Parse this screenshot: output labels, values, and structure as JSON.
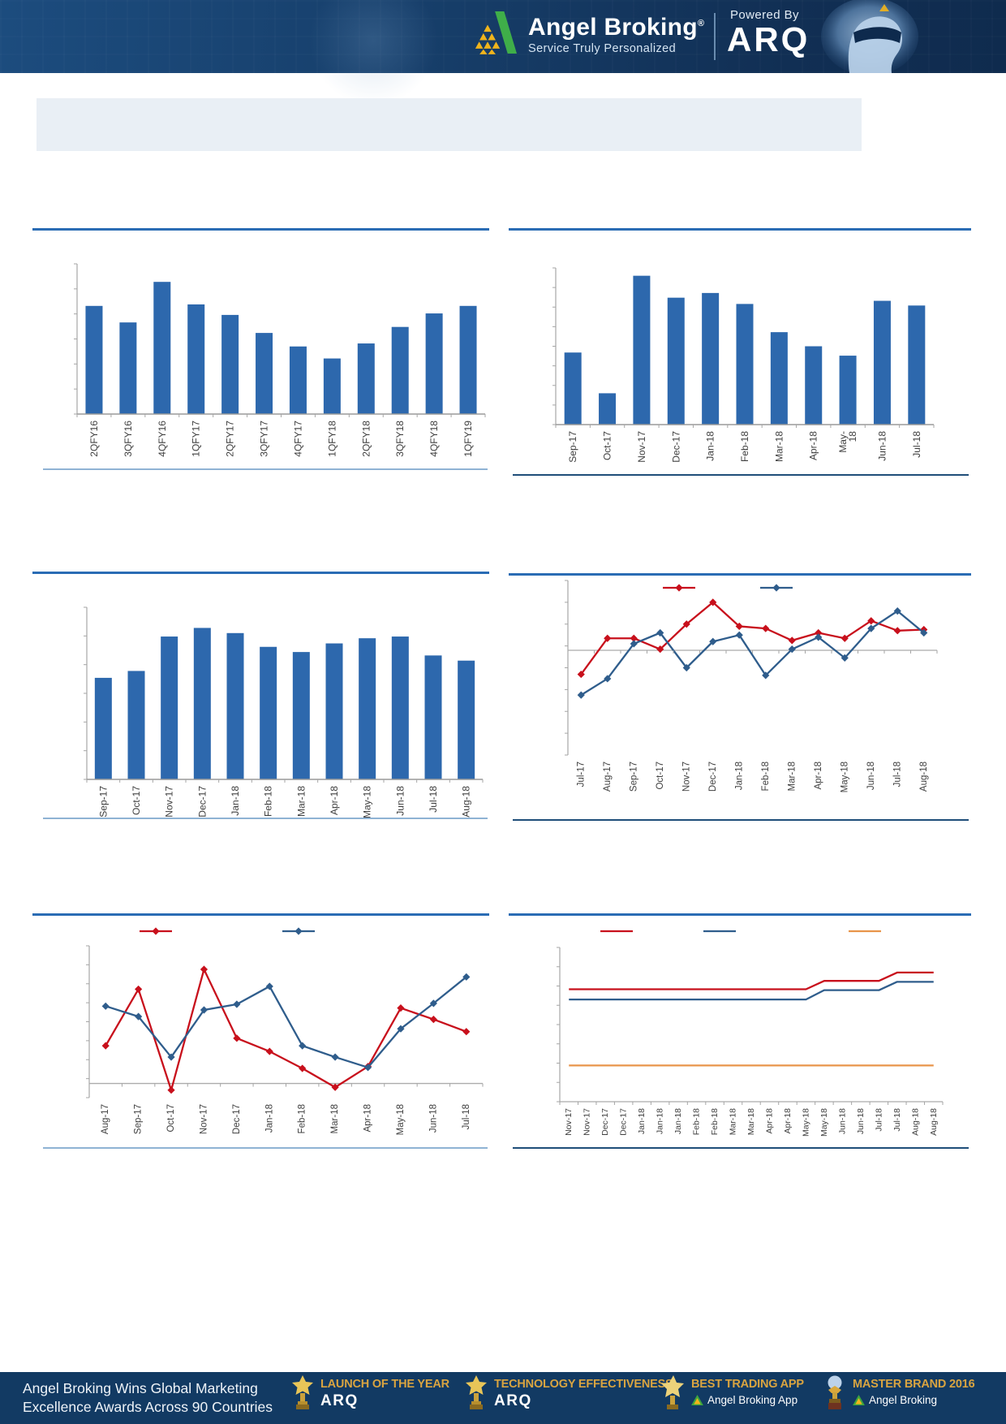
{
  "header": {
    "brand": "Angel Broking",
    "brand_registered": "®",
    "tagline": "Service Truly Personalized",
    "powered_by": "Powered By",
    "arq_logo": "ARQ"
  },
  "banner": {
    "text": ""
  },
  "chart_data": [
    {
      "id": "chart-1",
      "type": "bar",
      "title": "",
      "categories": [
        "2QFY16",
        "3QFY16",
        "4QFY16",
        "1QFY17",
        "2QFY17",
        "3QFY17",
        "4QFY17",
        "1QFY18",
        "2QFY18",
        "3QFY18",
        "4QFY18",
        "1QFY19"
      ],
      "values": [
        72,
        61,
        88,
        73,
        66,
        54,
        45,
        37,
        47,
        58,
        67,
        72
      ],
      "xlabel": "",
      "ylabel": "",
      "ylim": [
        0,
        100
      ],
      "grid": false,
      "legend": "none",
      "bar_color": "#2d68ad"
    },
    {
      "id": "chart-2",
      "type": "bar",
      "title": "",
      "categories": [
        "Sep-17",
        "Oct-17",
        "Nov-17",
        "Dec-17",
        "Jan-18",
        "Feb-18",
        "Mar-18",
        "Apr-18",
        "May-\n18",
        "Jun-18",
        "Jul-18"
      ],
      "values": [
        46,
        20,
        95,
        81,
        84,
        77,
        59,
        50,
        44,
        79,
        76
      ],
      "xlabel": "",
      "ylabel": "",
      "ylim": [
        0,
        100
      ],
      "grid": false,
      "legend": "none",
      "bar_color": "#2d68ad"
    },
    {
      "id": "chart-3",
      "type": "bar",
      "title": "",
      "categories": [
        "Sep-17",
        "Oct-17",
        "Nov-17",
        "Dec-17",
        "Jan-18",
        "Feb-18",
        "Mar-18",
        "Apr-18",
        "May-18",
        "Jun-18",
        "Jul-18",
        "Aug-18"
      ],
      "values": [
        59,
        63,
        83,
        88,
        85,
        77,
        74,
        79,
        82,
        83,
        72,
        69
      ],
      "xlabel": "",
      "ylabel": "",
      "ylim": [
        0,
        100
      ],
      "grid": false,
      "legend": "none",
      "bar_color": "#2d68ad"
    },
    {
      "id": "chart-4",
      "type": "line",
      "title": "",
      "x": [
        "Jul-17",
        "Aug-17",
        "Sep-17",
        "Oct-17",
        "Nov-17",
        "Dec-17",
        "Jan-18",
        "Feb-18",
        "Mar-18",
        "Apr-18",
        "May-18",
        "Jun-18",
        "Jul-18",
        "Aug-18"
      ],
      "series": [
        {
          "name": "",
          "color": "#c8101c",
          "marker": "diamond",
          "values": [
            -1.1,
            0.55,
            0.55,
            0.05,
            1.2,
            2.2,
            1.1,
            1.0,
            0.45,
            0.8,
            0.55,
            1.35,
            0.9,
            0.95
          ]
        },
        {
          "name": "",
          "color": "#2f5d8c",
          "marker": "diamond",
          "values": [
            -2.05,
            -1.3,
            0.3,
            0.8,
            -0.8,
            0.4,
            0.7,
            -1.15,
            0.05,
            0.6,
            -0.35,
            1.0,
            1.8,
            0.8
          ]
        }
      ],
      "ylim": [
        -4.8,
        3.2
      ],
      "zero_line": true,
      "grid": false,
      "legend": "top"
    },
    {
      "id": "chart-5",
      "type": "line",
      "title": "",
      "x": [
        "Aug-17",
        "Sep-17",
        "Oct-17",
        "Nov-17",
        "Dec-17",
        "Jan-18",
        "Feb-18",
        "Mar-18",
        "Apr-18",
        "May-18",
        "Jun-18",
        "Jul-18"
      ],
      "series": [
        {
          "name": "",
          "color": "#c8101c",
          "marker": "diamond",
          "values": [
            2.0,
            5.0,
            -0.35,
            6.05,
            2.4,
            1.7,
            0.8,
            -0.2,
            0.9,
            4.0,
            3.4,
            2.75
          ]
        },
        {
          "name": "",
          "color": "#2f5d8c",
          "marker": "diamond",
          "values": [
            4.1,
            3.55,
            1.4,
            3.9,
            4.2,
            5.15,
            2.0,
            1.4,
            0.85,
            2.9,
            4.25,
            5.65
          ]
        }
      ],
      "ylim": [
        -0.75,
        7.3
      ],
      "zero_line": true,
      "grid": false,
      "legend": "top"
    },
    {
      "id": "chart-6",
      "type": "line",
      "title": "",
      "x": [
        "Nov-17",
        "Nov-17",
        "Dec-17",
        "Dec-17",
        "Jan-18",
        "Jan-18",
        "Jan-18",
        "Feb-18",
        "Feb-18",
        "Mar-18",
        "Mar-18",
        "Apr-18",
        "Apr-18",
        "May-18",
        "May-18",
        "Jun-18",
        "Jun-18",
        "Jul-18",
        "Jul-18",
        "Aug-18",
        "Aug-18"
      ],
      "series": [
        {
          "name": "",
          "color": "#c8101c",
          "marker": "none",
          "values": [
            6.05,
            6.05,
            6.05,
            6.05,
            6.05,
            6.05,
            6.05,
            6.05,
            6.05,
            6.05,
            6.05,
            6.05,
            6.05,
            6.05,
            6.5,
            6.5,
            6.5,
            6.5,
            6.95,
            6.95,
            6.95
          ]
        },
        {
          "name": "",
          "color": "#2f5d8c",
          "marker": "none",
          "values": [
            5.5,
            5.5,
            5.5,
            5.5,
            5.5,
            5.5,
            5.5,
            5.5,
            5.5,
            5.5,
            5.5,
            5.5,
            5.5,
            5.5,
            6.0,
            6.0,
            6.0,
            6.0,
            6.45,
            6.45,
            6.45
          ]
        },
        {
          "name": "",
          "color": "#e8944a",
          "marker": "none",
          "values": [
            1.95,
            1.95,
            1.95,
            1.95,
            1.95,
            1.95,
            1.95,
            1.95,
            1.95,
            1.95,
            1.95,
            1.95,
            1.95,
            1.95,
            1.95,
            1.95,
            1.95,
            1.95,
            1.95,
            1.95,
            1.95
          ]
        }
      ],
      "ylim": [
        0,
        8.3
      ],
      "zero_line": true,
      "grid": false,
      "legend": "top"
    }
  ],
  "footer": {
    "headline": [
      "Angel Broking Wins Global Marketing",
      "Excellence Awards Across 90 Countries"
    ],
    "awards": [
      {
        "title": "LAUNCH OF THE YEAR",
        "subtitle": "ARQ",
        "style": "arq",
        "icon": "trophy-icon"
      },
      {
        "title": "TECHNOLOGY EFFECTIVENESS",
        "subtitle": "ARQ",
        "style": "arq",
        "icon": "trophy-icon"
      },
      {
        "title": "BEST TRADING APP",
        "subtitle": "Angel Broking App",
        "style": "angel",
        "icon": "star-trophy-icon"
      },
      {
        "title": "MASTER BRAND 2016",
        "subtitle": "Angel Broking",
        "style": "angel",
        "icon": "globe-trophy-icon"
      }
    ]
  },
  "colors": {
    "bar_blue": "#2d68ad",
    "line_red": "#c8101c",
    "line_steel_blue": "#2f5d8c",
    "line_orange": "#e8944a",
    "rule_blue": "#2a6cb4",
    "rule_light": "#8fb3d4",
    "rule_dark": "#1f4e79",
    "header_navy": "#173f6b",
    "footer_navy": "#123a63",
    "gold": "#d9a440",
    "banner_bg": "#e9eff5"
  }
}
